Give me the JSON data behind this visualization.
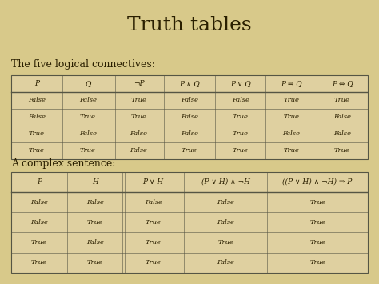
{
  "title": "Truth tables",
  "bg_color": "#d8c98a",
  "text_color": "#2a1f00",
  "table1_label": "The five logical connectives:",
  "table2_label": "A complex sentence:",
  "table1_headers": [
    "P",
    "Q",
    "¬P",
    "P ∧ Q",
    "P ∨ Q",
    "P ⇒ Q",
    "P ⇔ Q"
  ],
  "table1_rows": [
    [
      "False",
      "False",
      "True",
      "False",
      "False",
      "True",
      "True"
    ],
    [
      "False",
      "True",
      "True",
      "False",
      "True",
      "True",
      "False"
    ],
    [
      "True",
      "False",
      "False",
      "False",
      "True",
      "False",
      "False"
    ],
    [
      "True",
      "True",
      "False",
      "True",
      "True",
      "True",
      "True"
    ]
  ],
  "table2_headers": [
    "P",
    "H",
    "P ∨ H",
    "(P ∨ H) ∧ ¬H",
    "((P ∨ H) ∧ ¬H) ⇒ P"
  ],
  "table2_rows": [
    [
      "False",
      "False",
      "False",
      "False",
      "True"
    ],
    [
      "False",
      "True",
      "True",
      "False",
      "True"
    ],
    [
      "True",
      "False",
      "True",
      "True",
      "True"
    ],
    [
      "True",
      "True",
      "True",
      "False",
      "True"
    ]
  ],
  "title_fontsize": 18,
  "label_fontsize": 9,
  "header_fontsize": 6.5,
  "cell_fontsize": 6.0,
  "table_edge_color": "#555544",
  "cell_bg": "#dfd0a0",
  "double_line_cols_t1": [
    1
  ],
  "double_line_cols_t2": [
    1
  ]
}
